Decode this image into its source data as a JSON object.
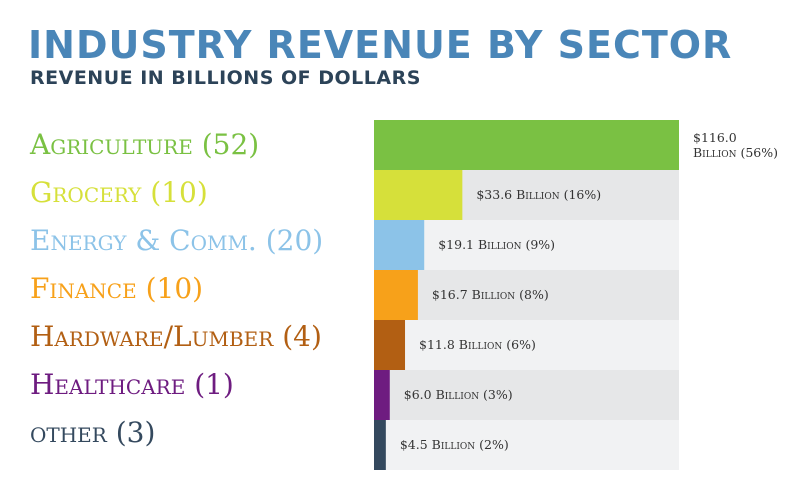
{
  "colors": {
    "title": "#4a86b8",
    "subtitle": "#2c4358",
    "track_odd": "#e6e7e8",
    "track_even": "#f1f2f3"
  },
  "chart_data": {
    "type": "bar",
    "orientation": "horizontal",
    "title": "INDUSTRY REVENUE BY SECTOR",
    "subtitle": "REVENUE IN BILLIONS OF DOLLARS",
    "xlim": [
      0,
      116
    ],
    "grid": false,
    "categories": [
      "Agriculture (52)",
      "Grocery (10)",
      "Energy & Comm. (20)",
      "Finance (10)",
      "Hardware/Lumber (4)",
      "Healthcare (1)",
      "other (3)"
    ],
    "values": [
      116.0,
      33.6,
      19.1,
      16.7,
      11.8,
      6.0,
      4.5
    ],
    "percents": [
      56,
      16,
      9,
      8,
      6,
      3,
      2
    ],
    "data_labels": [
      [
        "$116.0",
        "Billion (56%)"
      ],
      [
        "$33.6 Billion (16%)"
      ],
      [
        "$19.1 Billion (9%)"
      ],
      [
        "$16.7 Billion (8%)"
      ],
      [
        "$11.8 Billion (6%)"
      ],
      [
        "$6.0 Billion (3%)"
      ],
      [
        "$4.5 Billion (2%)"
      ]
    ],
    "bar_colors": [
      "#7ac143",
      "#d6e03a",
      "#8cc3e8",
      "#f7a11a",
      "#b25f13",
      "#6e1c80",
      "#34495e"
    ]
  }
}
